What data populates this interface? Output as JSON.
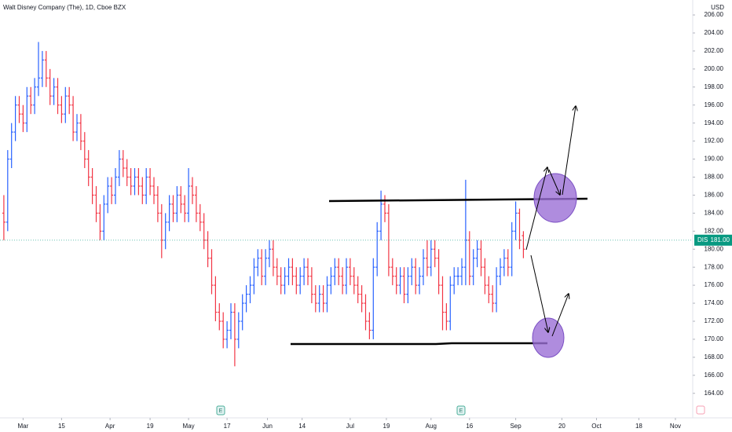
{
  "chart_data": {
    "type": "ohlc",
    "title": "Walt Disney Company (The), 1D, Cboe BZX",
    "currency": "USD",
    "symbol_tag": "DIS",
    "last_price": {
      "value": 181,
      "label": "181.00"
    },
    "events": [
      "E",
      "E"
    ],
    "up_color": "#2962ff",
    "down_color": "#f23645",
    "grid": false,
    "xlim": [
      -1,
      179
    ],
    "xticks": [
      {
        "value": 5,
        "label": "Mar"
      },
      {
        "value": 15,
        "label": "15"
      },
      {
        "value": 27.6,
        "label": "Apr"
      },
      {
        "value": 38,
        "label": "19"
      },
      {
        "value": 48,
        "label": "May"
      },
      {
        "value": 58,
        "label": "17"
      },
      {
        "value": 68.5,
        "label": "Jun"
      },
      {
        "value": 77.5,
        "label": "14"
      },
      {
        "value": 90,
        "label": "Jul"
      },
      {
        "value": 99.4,
        "label": "19"
      },
      {
        "value": 111,
        "label": "Aug"
      },
      {
        "value": 121,
        "label": "16"
      },
      {
        "value": 133,
        "label": "Sep"
      },
      {
        "value": 145,
        "label": "20"
      },
      {
        "value": 154,
        "label": "Oct"
      },
      {
        "value": 165,
        "label": "18"
      },
      {
        "value": 174.5,
        "label": "Nov"
      }
    ],
    "ylim": [
      161.45,
      207.66
    ],
    "yticks": [
      {
        "value": 164,
        "label": "164.00"
      },
      {
        "value": 166,
        "label": "166.00"
      },
      {
        "value": 168,
        "label": "168.00"
      },
      {
        "value": 170,
        "label": "170.00"
      },
      {
        "value": 172,
        "label": "172.00"
      },
      {
        "value": 174,
        "label": "174.00"
      },
      {
        "value": 176,
        "label": "176.00"
      },
      {
        "value": 178,
        "label": "178.00"
      },
      {
        "value": 180,
        "label": "180.00"
      },
      {
        "value": 182,
        "label": "182.00"
      },
      {
        "value": 184,
        "label": "184.00"
      },
      {
        "value": 186,
        "label": "186.00"
      },
      {
        "value": 188,
        "label": "188.00"
      },
      {
        "value": 190,
        "label": "190.00"
      },
      {
        "value": 192,
        "label": "192.00"
      },
      {
        "value": 194,
        "label": "194.00"
      },
      {
        "value": 196,
        "label": "196.00"
      },
      {
        "value": 198,
        "label": "198.00"
      },
      {
        "value": 200,
        "label": "200.00"
      },
      {
        "value": 202,
        "label": "202.00"
      },
      {
        "value": 204,
        "label": "204.00"
      },
      {
        "value": 206,
        "label": "206.00"
      }
    ],
    "ohlc": [
      [
        184,
        186,
        181,
        183
      ],
      [
        183,
        191,
        182,
        190
      ],
      [
        190,
        194,
        189,
        193
      ],
      [
        193,
        197,
        192,
        196
      ],
      [
        196,
        197,
        194,
        195
      ],
      [
        195,
        196,
        193,
        194
      ],
      [
        194,
        198,
        193,
        197
      ],
      [
        197,
        198,
        195,
        196
      ],
      [
        196,
        199,
        195,
        198
      ],
      [
        198,
        203,
        197,
        199
      ],
      [
        199,
        202,
        198,
        201
      ],
      [
        201,
        202,
        198,
        199
      ],
      [
        199,
        200,
        196,
        197
      ],
      [
        197,
        199,
        196,
        198
      ],
      [
        198,
        199,
        195,
        196
      ],
      [
        196,
        197,
        194,
        195
      ],
      [
        195,
        198,
        194,
        197
      ],
      [
        197,
        198,
        195,
        196
      ],
      [
        196,
        197,
        192,
        193
      ],
      [
        193,
        195,
        192,
        194
      ],
      [
        194,
        195,
        191,
        192
      ],
      [
        192,
        193,
        189,
        190
      ],
      [
        190,
        191,
        187,
        188
      ],
      [
        188,
        189,
        185,
        186
      ],
      [
        186,
        187,
        183,
        184
      ],
      [
        184,
        185,
        181,
        182
      ],
      [
        182,
        186,
        181,
        185
      ],
      [
        185,
        188,
        184,
        187
      ],
      [
        187,
        188,
        185,
        186
      ],
      [
        186,
        189,
        185,
        188
      ],
      [
        188,
        191,
        187,
        190
      ],
      [
        190,
        191,
        188,
        189
      ],
      [
        189,
        190,
        187,
        188
      ],
      [
        188,
        189,
        186,
        187
      ],
      [
        187,
        189,
        186,
        188
      ],
      [
        188,
        189,
        186,
        187
      ],
      [
        187,
        188,
        185,
        186
      ],
      [
        186,
        189,
        185,
        188
      ],
      [
        188,
        189,
        186,
        187
      ],
      [
        187,
        188,
        185,
        186
      ],
      [
        186,
        187,
        183,
        184
      ],
      [
        184,
        185,
        179,
        181
      ],
      [
        181,
        184,
        180,
        183
      ],
      [
        183,
        186,
        182,
        185
      ],
      [
        185,
        186,
        183,
        184
      ],
      [
        184,
        187,
        183,
        186
      ],
      [
        186,
        187,
        184,
        185
      ],
      [
        185,
        186,
        183,
        184
      ],
      [
        184,
        189,
        183,
        187
      ],
      [
        187,
        188,
        185,
        186
      ],
      [
        186,
        187,
        183,
        184
      ],
      [
        184,
        185,
        182,
        183
      ],
      [
        183,
        184,
        180,
        181
      ],
      [
        181,
        182,
        178,
        179
      ],
      [
        179,
        180,
        175,
        176
      ],
      [
        176,
        177,
        172,
        173
      ],
      [
        173,
        174,
        171,
        172
      ],
      [
        172,
        173,
        169,
        170
      ],
      [
        170,
        172,
        169,
        171
      ],
      [
        171,
        174,
        170,
        173
      ],
      [
        173,
        174,
        167,
        170
      ],
      [
        170,
        173,
        169,
        172
      ],
      [
        172,
        175,
        171,
        174
      ],
      [
        174,
        176,
        173,
        175
      ],
      [
        175,
        177,
        174,
        176
      ],
      [
        176,
        179,
        175,
        178
      ],
      [
        178,
        180,
        177,
        179
      ],
      [
        179,
        180,
        176,
        177
      ],
      [
        177,
        180,
        176,
        179
      ],
      [
        179,
        181,
        178,
        180
      ],
      [
        180,
        181,
        177,
        178
      ],
      [
        178,
        179,
        176,
        177
      ],
      [
        177,
        178,
        175,
        176
      ],
      [
        176,
        178,
        175,
        177
      ],
      [
        177,
        179,
        176,
        178
      ],
      [
        178,
        179,
        176,
        177
      ],
      [
        177,
        178,
        175,
        176
      ],
      [
        176,
        178,
        175,
        177
      ],
      [
        177,
        179,
        176,
        178
      ],
      [
        178,
        179,
        176,
        177
      ],
      [
        177,
        178,
        174,
        175
      ],
      [
        175,
        176,
        173,
        174
      ],
      [
        174,
        176,
        173,
        175
      ],
      [
        175,
        176,
        173,
        174
      ],
      [
        174,
        177,
        173,
        176
      ],
      [
        176,
        178,
        175,
        177
      ],
      [
        177,
        179,
        176,
        178
      ],
      [
        178,
        179,
        176,
        177
      ],
      [
        177,
        178,
        175,
        176
      ],
      [
        176,
        179,
        175,
        178
      ],
      [
        178,
        179,
        176,
        177
      ],
      [
        177,
        178,
        175,
        176
      ],
      [
        176,
        177,
        174,
        175
      ],
      [
        175,
        176,
        173,
        174
      ],
      [
        174,
        175,
        171,
        172
      ],
      [
        172,
        173,
        170,
        171
      ],
      [
        171,
        179,
        170,
        178
      ],
      [
        178,
        183,
        177,
        182
      ],
      [
        182,
        186.5,
        181,
        185
      ],
      [
        185,
        186,
        183,
        184
      ],
      [
        184,
        185,
        177,
        178
      ],
      [
        178,
        179,
        176,
        177
      ],
      [
        177,
        178,
        175,
        176
      ],
      [
        176,
        178,
        175,
        177
      ],
      [
        177,
        178,
        174,
        175
      ],
      [
        175,
        178,
        174,
        177
      ],
      [
        177,
        179,
        176,
        178
      ],
      [
        178,
        179,
        175,
        176
      ],
      [
        176,
        178,
        175,
        177
      ],
      [
        177,
        180,
        176,
        179
      ],
      [
        179,
        181,
        177,
        178
      ],
      [
        178,
        181,
        177,
        180
      ],
      [
        180,
        181,
        178,
        179
      ],
      [
        179,
        180,
        175,
        176
      ],
      [
        176,
        177,
        171,
        173
      ],
      [
        173,
        174,
        171,
        172
      ],
      [
        172,
        177,
        171,
        176
      ],
      [
        176,
        178,
        175,
        177
      ],
      [
        177,
        178,
        176,
        177
      ],
      [
        177,
        179,
        176,
        178
      ],
      [
        178,
        187.7,
        176,
        181
      ],
      [
        181,
        182,
        176,
        177
      ],
      [
        177,
        180,
        176,
        179
      ],
      [
        179,
        181,
        178,
        180
      ],
      [
        180,
        181,
        177,
        178
      ],
      [
        178,
        179,
        175,
        176
      ],
      [
        176,
        177,
        174,
        175
      ],
      [
        175,
        176,
        173,
        174
      ],
      [
        174,
        178,
        173,
        177
      ],
      [
        177,
        179,
        176,
        178
      ],
      [
        178,
        180,
        177,
        179
      ],
      [
        179,
        180,
        177,
        178
      ],
      [
        178,
        183,
        177,
        182
      ],
      [
        182,
        185.3,
        181,
        184
      ],
      [
        184,
        184.5,
        180,
        181
      ],
      [
        181.5,
        182,
        179,
        180
      ]
    ]
  }
}
